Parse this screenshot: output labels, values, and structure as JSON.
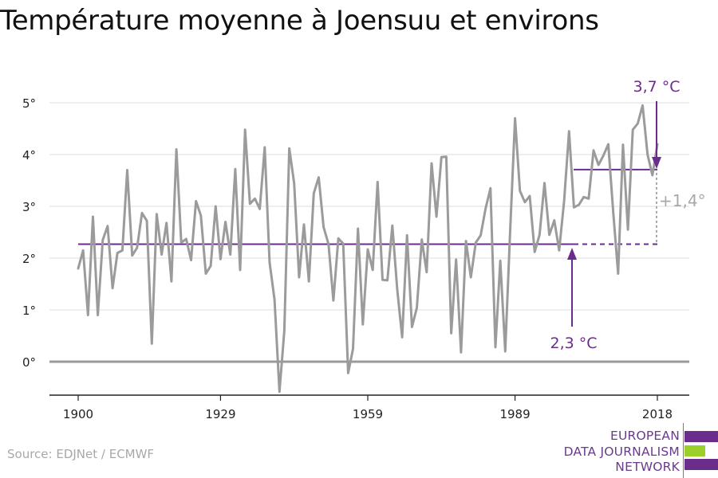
{
  "page": {
    "title": "Température moyenne à Joensuu et environs",
    "source": "Source: EDJNet / ECMWF"
  },
  "logo": {
    "lines": [
      "EUROPEAN",
      "DATA JOURNALISM",
      "NETWORK"
    ],
    "colors": [
      "#6b2d8c",
      "#9bcf2a",
      "#6b2d8c"
    ]
  },
  "chart_data": {
    "type": "line",
    "title": "Température moyenne à Joensuu et environs",
    "xlabel": "",
    "ylabel": "",
    "xlim": [
      1900,
      2018
    ],
    "ylim": [
      -0.6,
      5.2
    ],
    "x_ticks": [
      1900,
      1929,
      1959,
      1989,
      2018
    ],
    "y_ticks": [
      0,
      1,
      2,
      3,
      4,
      5
    ],
    "y_tick_labels": [
      "0°",
      "1°",
      "2°",
      "3°",
      "4°",
      "5°"
    ],
    "grid": true,
    "series": [
      {
        "color": "#9b9b9b",
        "x": [
          1900,
          1901,
          1902,
          1903,
          1904,
          1905,
          1906,
          1907,
          1908,
          1909,
          1910,
          1911,
          1912,
          1913,
          1914,
          1915,
          1916,
          1917,
          1918,
          1919,
          1920,
          1921,
          1922,
          1923,
          1924,
          1925,
          1926,
          1927,
          1928,
          1929,
          1930,
          1931,
          1932,
          1933,
          1934,
          1935,
          1936,
          1937,
          1938,
          1939,
          1940,
          1941,
          1942,
          1943,
          1944,
          1945,
          1946,
          1947,
          1948,
          1949,
          1950,
          1951,
          1952,
          1953,
          1954,
          1955,
          1956,
          1957,
          1958,
          1959,
          1960,
          1961,
          1962,
          1963,
          1964,
          1965,
          1966,
          1967,
          1968,
          1969,
          1970,
          1971,
          1972,
          1973,
          1974,
          1975,
          1976,
          1977,
          1978,
          1979,
          1980,
          1981,
          1982,
          1983,
          1984,
          1985,
          1986,
          1987,
          1988,
          1989,
          1990,
          1991,
          1992,
          1993,
          1994,
          1995,
          1996,
          1997,
          1998,
          1999,
          2000,
          2001,
          2002,
          2003,
          2004,
          2005,
          2006,
          2007,
          2008,
          2009,
          2010,
          2011,
          2012,
          2013,
          2014,
          2015,
          2016,
          2017,
          2018
        ],
        "values": [
          1.8,
          2.15,
          0.9,
          2.8,
          0.9,
          2.35,
          2.62,
          1.42,
          2.1,
          2.15,
          3.7,
          2.05,
          2.2,
          2.87,
          2.72,
          0.35,
          2.85,
          2.07,
          2.68,
          1.55,
          4.1,
          2.3,
          2.37,
          1.96,
          3.1,
          2.82,
          1.7,
          1.85,
          3.0,
          1.98,
          2.7,
          2.07,
          3.72,
          1.77,
          4.48,
          3.05,
          3.15,
          2.95,
          4.14,
          1.92,
          1.2,
          -0.58,
          0.6,
          4.12,
          3.45,
          1.63,
          2.65,
          1.55,
          3.25,
          3.56,
          2.6,
          2.27,
          1.18,
          2.38,
          2.28,
          -0.22,
          0.25,
          2.57,
          0.72,
          2.17,
          1.77,
          3.47,
          1.58,
          1.57,
          2.63,
          1.4,
          0.47,
          2.44,
          0.67,
          1.04,
          2.36,
          1.73,
          3.83,
          2.8,
          3.95,
          3.96,
          0.55,
          1.97,
          0.18,
          2.33,
          1.63,
          2.3,
          2.44,
          2.96,
          3.35,
          0.28,
          1.95,
          0.2,
          2.5,
          4.7,
          3.3,
          3.08,
          3.2,
          2.12,
          2.45,
          3.45,
          2.45,
          2.73,
          2.15,
          3.1,
          4.45,
          2.98,
          3.03,
          3.18,
          3.15,
          4.08,
          3.8,
          3.98,
          4.2,
          2.9,
          1.7,
          4.19,
          2.55,
          4.48,
          4.6,
          4.95,
          4.0,
          3.6,
          4.2
        ]
      }
    ],
    "reference_lines": [
      {
        "label": "2,3 °C",
        "value": 2.27,
        "from": 1900,
        "to": 2000
      },
      {
        "label": "3,7 °C",
        "value": 3.71,
        "from": 2000,
        "to": 2018
      }
    ],
    "annotations": {
      "label_low": "2,3 °C",
      "label_high": "3,7 °C",
      "label_diff": "+1,4°",
      "accent_color": "#6b2d8c",
      "diff_color": "#a8a8a8"
    }
  }
}
